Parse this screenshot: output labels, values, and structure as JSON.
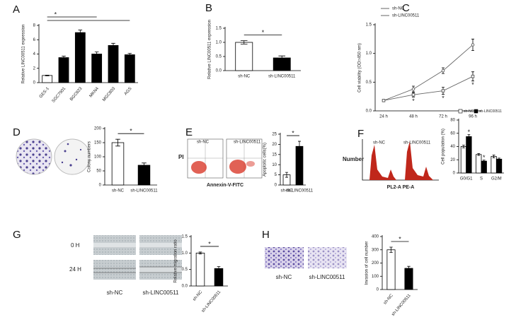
{
  "chart_data": [
    {
      "panel_label": "A",
      "type": "bar",
      "y_label": "Relative LINC00511 expression",
      "categories": [
        "GES-1",
        "SGC7901",
        "BGC823",
        "MKN4",
        "MGC803",
        "AGS"
      ],
      "values": [
        1.0,
        3.5,
        7.0,
        4.0,
        5.2,
        3.9
      ],
      "errors": [
        0.05,
        0.2,
        0.35,
        0.3,
        0.3,
        0.2
      ],
      "colors": [
        "#ffffff",
        "#000000",
        "#000000",
        "#000000",
        "#000000",
        "#000000"
      ],
      "ylim": [
        0,
        8
      ],
      "yticks": [
        0,
        2,
        4,
        6,
        8
      ],
      "annotations": [
        "*"
      ]
    },
    {
      "panel_label": "B",
      "type": "bar",
      "y_label": "Relative LINC00511 expression",
      "categories": [
        "sh-NC",
        "sh-LINC00511"
      ],
      "values": [
        1.0,
        0.45
      ],
      "errors": [
        0.06,
        0.07
      ],
      "colors": [
        "#ffffff",
        "#000000"
      ],
      "ylim": [
        0,
        1.5
      ],
      "yticks": [
        {
          "value": 0,
          "label": "0.0"
        },
        0.5,
        {
          "value": 1,
          "label": "1.0"
        },
        1.5
      ],
      "annotations": [
        "*"
      ]
    },
    {
      "panel_label": "C",
      "type": "line",
      "y_label": "Cell viability (OD=450 nm)",
      "categories": [
        "24 h",
        "48 h",
        "72 h",
        "96 h"
      ],
      "series": [
        {
          "name": "sh-NC",
          "color": "#666666",
          "values": [
            0.18,
            0.38,
            0.7,
            1.15
          ],
          "errors": [
            0.02,
            0.05,
            0.05,
            0.1
          ]
        },
        {
          "name": "sh-LINC00511",
          "color": "#666666",
          "values": [
            0.18,
            0.28,
            0.35,
            0.6
          ],
          "errors": [
            0.02,
            0.04,
            0.06,
            0.08
          ]
        }
      ],
      "ylim": [
        0,
        1.5
      ],
      "yticks": [
        {
          "value": 0,
          "label": "0.0"
        },
        0.5,
        {
          "value": 1,
          "label": "1.0"
        },
        1.5
      ],
      "annotations": [
        "*",
        "*",
        "*"
      ]
    },
    {
      "panel_label": "D",
      "type": "bar",
      "y_label": "Colony numbers",
      "categories": [
        "sh-NC",
        "sh-LINC00511"
      ],
      "values": [
        150,
        70
      ],
      "errors": [
        12,
        8
      ],
      "colors": [
        "#ffffff",
        "#000000"
      ],
      "ylim": [
        0,
        200
      ],
      "yticks": [
        0,
        50,
        100,
        150,
        200
      ],
      "annotations": [
        "*"
      ]
    },
    {
      "panel_label": "E",
      "type": "bar",
      "y_label": "Apoptotic cells(%)",
      "categories": [
        "sh-NC",
        "sh-LINC00511"
      ],
      "values": [
        5,
        19
      ],
      "errors": [
        1.2,
        2.5
      ],
      "colors": [
        "#ffffff",
        "#000000"
      ],
      "ylim": [
        0,
        25
      ],
      "yticks": [
        0,
        5,
        10,
        15,
        20,
        25
      ],
      "annotations": [
        "*"
      ]
    },
    {
      "panel_label": "F",
      "type": "grouped_bar",
      "y_label": "Cell population (%)",
      "categories": [
        "G0/G1",
        "S",
        "G2/M"
      ],
      "series": [
        {
          "name": "sh-NC",
          "color": "#ffffff",
          "values": [
            40,
            28,
            25
          ],
          "errors": [
            2,
            1.5,
            2
          ]
        },
        {
          "name": "sh-LINC00511",
          "color": "#000000",
          "values": [
            55,
            18,
            21
          ],
          "errors": [
            3,
            1.5,
            1.5
          ]
        }
      ],
      "ylim": [
        0,
        80
      ],
      "yticks": [
        0,
        20,
        40,
        60,
        80
      ],
      "annotations": [
        "*",
        "*"
      ]
    },
    {
      "panel_label": "G",
      "type": "bar",
      "y_label": "Relative migration ratio",
      "categories": [
        "sh-NC",
        "sh-LINC00511"
      ],
      "values": [
        1.0,
        0.53
      ],
      "errors": [
        0.03,
        0.06
      ],
      "colors": [
        "#ffffff",
        "#000000"
      ],
      "ylim": [
        0,
        1.5
      ],
      "yticks": [
        {
          "value": 0,
          "label": "0.0"
        },
        0.5,
        {
          "value": 1,
          "label": "1.0"
        },
        1.5
      ],
      "annotations": [
        "*"
      ]
    },
    {
      "panel_label": "H",
      "type": "bar",
      "y_label": "Invasion of cell number",
      "categories": [
        "sh-NC",
        "sh-LINC00511"
      ],
      "values": [
        300,
        160
      ],
      "errors": [
        20,
        15
      ],
      "colors": [
        "#ffffff",
        "#000000"
      ],
      "ylim": [
        0,
        400
      ],
      "yticks": [
        0,
        100,
        200,
        300,
        400
      ],
      "annotations": [
        "*"
      ]
    }
  ],
  "images": {
    "E": {
      "labels": [
        "sh-NC",
        "sh-LINC00511"
      ],
      "y_axis": "PI",
      "x_axis": "Annexin-V-FITC"
    },
    "F": {
      "labels": [
        "sh-NC",
        "sh-LINC00511"
      ],
      "y_axis": "Number",
      "x_axis": "PL2-A PE-A"
    },
    "G": {
      "rows": [
        "0 H",
        "24 H"
      ],
      "labels": [
        "sh-NC",
        "sh-LINC00511"
      ]
    },
    "H": {
      "labels": [
        "sh-NC",
        "sh-LINC00511"
      ]
    }
  }
}
